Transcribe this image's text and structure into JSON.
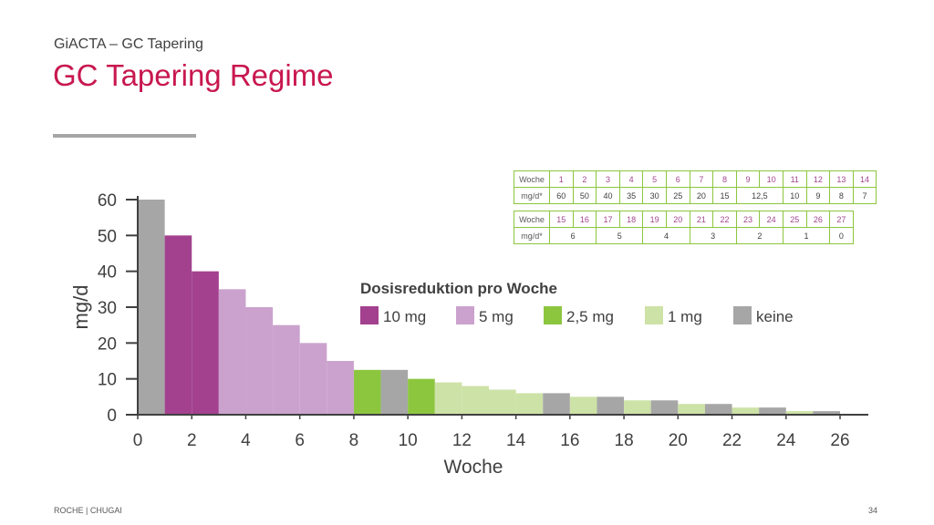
{
  "header": {
    "supertitle": "GiACTA – GC Tapering",
    "title": "GC Tapering Regime"
  },
  "footer": {
    "left": "ROCHE | CHUGAI",
    "page_number": "34"
  },
  "colors": {
    "title": "#c8174f",
    "dose_10mg": "#a3418f",
    "dose_5mg": "#cba2cd",
    "dose_2_5mg": "#8cc63f",
    "dose_1mg": "#cde2a6",
    "dose_none": "#a6a6a6",
    "table_border": "#8cc63f",
    "week_number": "#a3478f"
  },
  "legend": {
    "title": "Dosisreduktion pro Woche",
    "items": [
      {
        "label": "10 mg",
        "color": "#a3418f"
      },
      {
        "label": "5 mg",
        "color": "#cba2cd"
      },
      {
        "label": "2,5 mg",
        "color": "#8cc63f"
      },
      {
        "label": "1 mg",
        "color": "#cde2a6"
      },
      {
        "label": "keine",
        "color": "#a6a6a6"
      }
    ]
  },
  "tables": [
    {
      "row1_label": "Woche",
      "row2_label": "mg/d*",
      "weeks": [
        "1",
        "2",
        "3",
        "4",
        "5",
        "6",
        "7",
        "8",
        "9",
        "10",
        "11",
        "12",
        "13",
        "14"
      ],
      "doses": [
        {
          "text": "60",
          "span": 1
        },
        {
          "text": "50",
          "span": 1
        },
        {
          "text": "40",
          "span": 1
        },
        {
          "text": "35",
          "span": 1
        },
        {
          "text": "30",
          "span": 1
        },
        {
          "text": "25",
          "span": 1
        },
        {
          "text": "20",
          "span": 1
        },
        {
          "text": "15",
          "span": 1
        },
        {
          "text": "12,5",
          "span": 2
        },
        {
          "text": "10",
          "span": 1
        },
        {
          "text": "9",
          "span": 1
        },
        {
          "text": "8",
          "span": 1
        },
        {
          "text": "7",
          "span": 1
        }
      ]
    },
    {
      "row1_label": "Woche",
      "row2_label": "mg/d*",
      "weeks": [
        "15",
        "16",
        "17",
        "18",
        "19",
        "20",
        "21",
        "22",
        "23",
        "24",
        "25",
        "26",
        "27"
      ],
      "doses": [
        {
          "text": "6",
          "span": 2
        },
        {
          "text": "5",
          "span": 2
        },
        {
          "text": "4",
          "span": 2
        },
        {
          "text": "3",
          "span": 2
        },
        {
          "text": "2",
          "span": 2
        },
        {
          "text": "1",
          "span": 2
        },
        {
          "text": "0",
          "span": 1
        }
      ]
    }
  ],
  "chart_data": {
    "type": "bar",
    "xlabel": "Woche",
    "ylabel": "mg/d",
    "xlim": [
      0,
      27
    ],
    "ylim": [
      0,
      60
    ],
    "xticks": [
      0,
      2,
      4,
      6,
      8,
      10,
      12,
      14,
      16,
      18,
      20,
      22,
      24,
      26
    ],
    "yticks": [
      0,
      10,
      20,
      30,
      40,
      50,
      60
    ],
    "bars": [
      {
        "x_start": 0,
        "x_end": 1,
        "value": 60,
        "reduction": "keine"
      },
      {
        "x_start": 1,
        "x_end": 2,
        "value": 50,
        "reduction": "10 mg"
      },
      {
        "x_start": 2,
        "x_end": 3,
        "value": 40,
        "reduction": "10 mg"
      },
      {
        "x_start": 3,
        "x_end": 4,
        "value": 35,
        "reduction": "5 mg"
      },
      {
        "x_start": 4,
        "x_end": 5,
        "value": 30,
        "reduction": "5 mg"
      },
      {
        "x_start": 5,
        "x_end": 6,
        "value": 25,
        "reduction": "5 mg"
      },
      {
        "x_start": 6,
        "x_end": 7,
        "value": 20,
        "reduction": "5 mg"
      },
      {
        "x_start": 7,
        "x_end": 8,
        "value": 15,
        "reduction": "5 mg"
      },
      {
        "x_start": 8,
        "x_end": 9,
        "value": 12.5,
        "reduction": "2,5 mg"
      },
      {
        "x_start": 9,
        "x_end": 10,
        "value": 12.5,
        "reduction": "keine"
      },
      {
        "x_start": 10,
        "x_end": 11,
        "value": 10,
        "reduction": "2,5 mg"
      },
      {
        "x_start": 11,
        "x_end": 12,
        "value": 9,
        "reduction": "1 mg"
      },
      {
        "x_start": 12,
        "x_end": 13,
        "value": 8,
        "reduction": "1 mg"
      },
      {
        "x_start": 13,
        "x_end": 14,
        "value": 7,
        "reduction": "1 mg"
      },
      {
        "x_start": 14,
        "x_end": 15,
        "value": 6,
        "reduction": "1 mg"
      },
      {
        "x_start": 15,
        "x_end": 16,
        "value": 6,
        "reduction": "keine"
      },
      {
        "x_start": 16,
        "x_end": 17,
        "value": 5,
        "reduction": "1 mg"
      },
      {
        "x_start": 17,
        "x_end": 18,
        "value": 5,
        "reduction": "keine"
      },
      {
        "x_start": 18,
        "x_end": 19,
        "value": 4,
        "reduction": "1 mg"
      },
      {
        "x_start": 19,
        "x_end": 20,
        "value": 4,
        "reduction": "keine"
      },
      {
        "x_start": 20,
        "x_end": 21,
        "value": 3,
        "reduction": "1 mg"
      },
      {
        "x_start": 21,
        "x_end": 22,
        "value": 3,
        "reduction": "keine"
      },
      {
        "x_start": 22,
        "x_end": 23,
        "value": 2,
        "reduction": "1 mg"
      },
      {
        "x_start": 23,
        "x_end": 24,
        "value": 2,
        "reduction": "keine"
      },
      {
        "x_start": 24,
        "x_end": 25,
        "value": 1,
        "reduction": "1 mg"
      },
      {
        "x_start": 25,
        "x_end": 26,
        "value": 1,
        "reduction": "keine"
      }
    ]
  }
}
